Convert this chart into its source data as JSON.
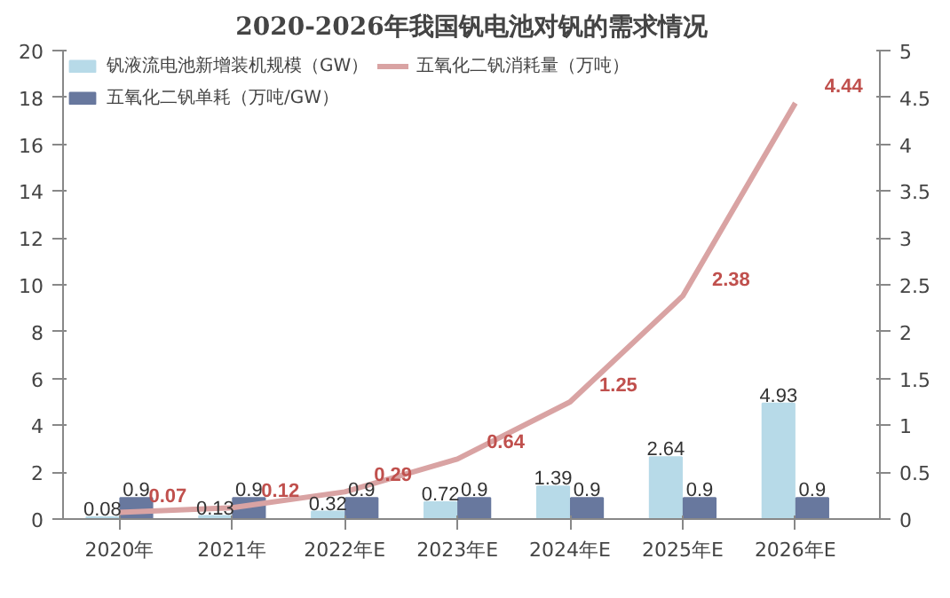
{
  "chart_data": {
    "type": "bar",
    "title": "2020-2026年我国钒电池对钒的需求情况",
    "categories": [
      "2020年",
      "2021年",
      "2022年E",
      "2023年E",
      "2024年E",
      "2025年E",
      "2026年E"
    ],
    "series": [
      {
        "name": "钒液流电池新增装机规模（GW）",
        "color": "#b7dae8",
        "values": [
          0.08,
          0.13,
          0.32,
          0.72,
          1.39,
          2.64,
          4.93
        ]
      },
      {
        "name": "五氧化二钒单耗（万吨/GW）",
        "color": "#68789e",
        "values": [
          0.9,
          0.9,
          0.9,
          0.9,
          0.9,
          0.9,
          0.9
        ]
      },
      {
        "name": "五氧化二钒消耗量（万吨）",
        "type": "line",
        "axis": "y2",
        "color": "#d9a3a3",
        "values": [
          0.07,
          0.12,
          0.29,
          0.64,
          1.25,
          2.38,
          4.44
        ]
      }
    ],
    "ylim": [
      0,
      20
    ],
    "yticks": [
      0,
      2,
      4,
      6,
      8,
      10,
      12,
      14,
      16,
      18,
      20
    ],
    "y2lim": [
      0,
      5
    ],
    "y2ticks": [
      0,
      0.5,
      1,
      1.5,
      2,
      2.5,
      3,
      3.5,
      4,
      4.5,
      5
    ],
    "data_labels": true,
    "legend": "top",
    "grid": false,
    "marker": "none",
    "line_style": "solid"
  }
}
